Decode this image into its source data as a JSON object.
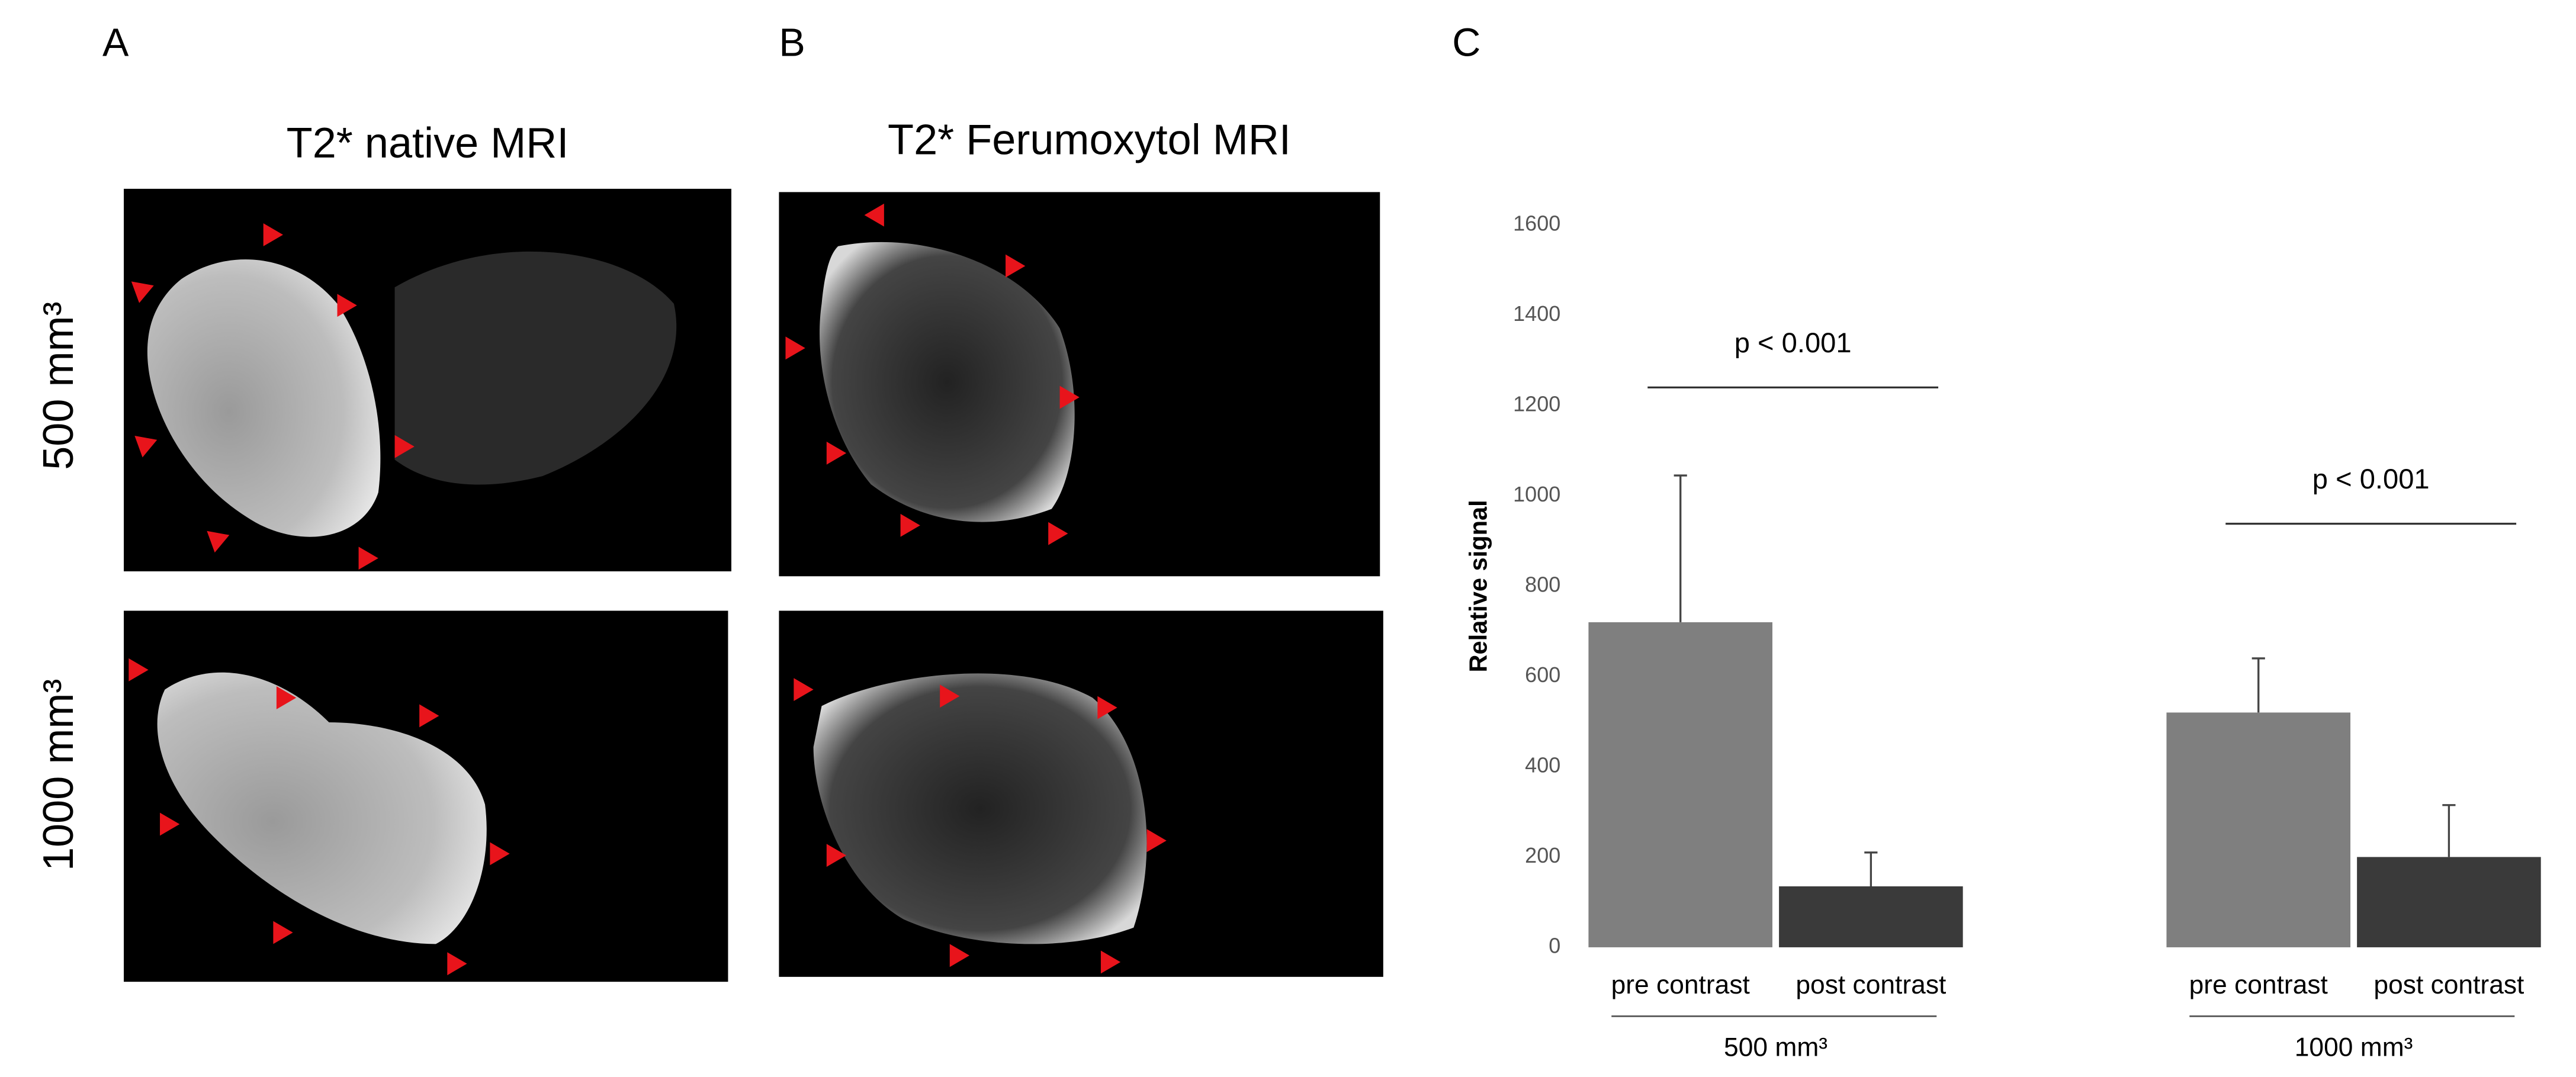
{
  "panels": {
    "labels": [
      "A",
      "B",
      "C"
    ],
    "column_titles": [
      "T2* native MRI",
      "T2* Ferumoxytol MRI"
    ],
    "row_labels": [
      "500 mm³",
      "1000 mm³"
    ]
  },
  "chart_data": {
    "type": "bar",
    "y_label": "Relative signal",
    "categories": [
      "pre contrast",
      "post contrast",
      "pre contrast",
      "post contrast"
    ],
    "groups": [
      "500 mm³",
      "1000 mm³"
    ],
    "values": [
      720,
      135,
      520,
      200
    ],
    "errors": [
      325,
      75,
      120,
      115
    ],
    "colors": [
      "#7f7f7f",
      "#3a3a3a",
      "#7f7f7f",
      "#3a3a3a"
    ],
    "ylim": [
      0,
      1600
    ],
    "yticks": [
      0,
      200,
      400,
      600,
      800,
      1000,
      1200,
      1400,
      1600
    ],
    "annotations": [
      "p < 0.001",
      "p < 0.001"
    ]
  }
}
